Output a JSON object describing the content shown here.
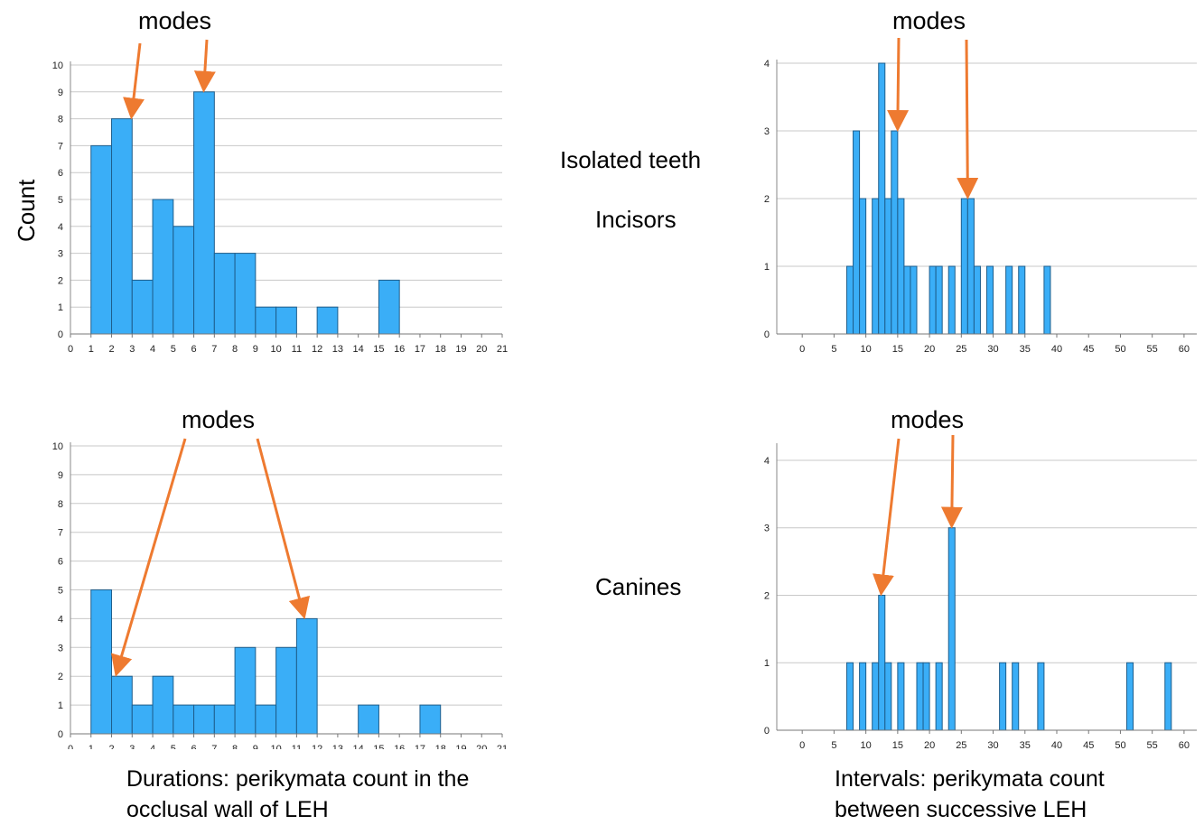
{
  "figure": {
    "y_label": "Count",
    "row_labels": {
      "isolated": "Isolated teeth",
      "incisors": "Incisors",
      "canines": "Canines"
    },
    "x_captions": {
      "durations": "Durations: perikymata count in the occlusal wall of LEH",
      "intervals": "Intervals: perikymata count between successive LEH"
    },
    "annotation": "modes",
    "colors": {
      "bar": "#3AAEF7",
      "bar_stroke": "#1E5E8C",
      "arrow": "#EE7A30",
      "grid": "#C8C8C8"
    }
  },
  "chart_data": [
    {
      "type": "bar",
      "id": "incisors-durations",
      "x_edges_start": 1,
      "bin_width": 1,
      "values": [
        7,
        8,
        2,
        5,
        4,
        9,
        3,
        3,
        1,
        1,
        0,
        1,
        0,
        0,
        2
      ],
      "xlim": [
        0,
        21
      ],
      "ylim": [
        0,
        10
      ],
      "xticks": [
        0,
        1,
        2,
        3,
        4,
        5,
        6,
        7,
        8,
        9,
        10,
        11,
        12,
        13,
        14,
        15,
        16,
        17,
        18,
        19,
        20,
        21
      ],
      "yticks": [
        0,
        1,
        2,
        3,
        4,
        5,
        6,
        7,
        8,
        9,
        10
      ],
      "mode_markers": [
        3,
        6.5
      ]
    },
    {
      "type": "bar",
      "id": "incisors-intervals",
      "bars": [
        {
          "x": 7,
          "y": 1
        },
        {
          "x": 8,
          "y": 3
        },
        {
          "x": 9,
          "y": 2
        },
        {
          "x": 11,
          "y": 2
        },
        {
          "x": 12,
          "y": 4
        },
        {
          "x": 13,
          "y": 2
        },
        {
          "x": 14,
          "y": 3
        },
        {
          "x": 15,
          "y": 2
        },
        {
          "x": 16,
          "y": 1
        },
        {
          "x": 17,
          "y": 1
        },
        {
          "x": 20,
          "y": 1
        },
        {
          "x": 21,
          "y": 1
        },
        {
          "x": 23,
          "y": 1
        },
        {
          "x": 25,
          "y": 2
        },
        {
          "x": 26,
          "y": 2
        },
        {
          "x": 27,
          "y": 1
        },
        {
          "x": 29,
          "y": 1
        },
        {
          "x": 32,
          "y": 1
        },
        {
          "x": 34,
          "y": 1
        },
        {
          "x": 38,
          "y": 1
        }
      ],
      "bin_width": 1,
      "xlim": [
        -4,
        62
      ],
      "ylim": [
        0,
        4
      ],
      "xticks": [
        0,
        5,
        10,
        15,
        20,
        25,
        30,
        35,
        40,
        45,
        50,
        55,
        60
      ],
      "yticks": [
        0,
        1,
        2,
        3,
        4
      ],
      "mode_markers": [
        15,
        26
      ]
    },
    {
      "type": "bar",
      "id": "canines-durations",
      "x_edges_start": 1,
      "bin_width": 1,
      "values": [
        5,
        2,
        1,
        2,
        1,
        1,
        1,
        3,
        1,
        3,
        4,
        0,
        0,
        1,
        0,
        0,
        1
      ],
      "xlim": [
        0,
        21
      ],
      "ylim": [
        0,
        10
      ],
      "xticks": [
        0,
        1,
        2,
        3,
        4,
        5,
        6,
        7,
        8,
        9,
        10,
        11,
        12,
        13,
        14,
        15,
        16,
        17,
        18,
        19,
        20,
        21
      ],
      "yticks": [
        0,
        1,
        2,
        3,
        4,
        5,
        6,
        7,
        8,
        9,
        10
      ],
      "mode_markers": [
        2.3,
        11.3
      ]
    },
    {
      "type": "bar",
      "id": "canines-intervals",
      "bars": [
        {
          "x": 7,
          "y": 1
        },
        {
          "x": 9,
          "y": 1
        },
        {
          "x": 11,
          "y": 1
        },
        {
          "x": 12,
          "y": 2
        },
        {
          "x": 13,
          "y": 1
        },
        {
          "x": 15,
          "y": 1
        },
        {
          "x": 18,
          "y": 1
        },
        {
          "x": 19,
          "y": 1
        },
        {
          "x": 21,
          "y": 1
        },
        {
          "x": 23,
          "y": 3
        },
        {
          "x": 31,
          "y": 1
        },
        {
          "x": 33,
          "y": 1
        },
        {
          "x": 37,
          "y": 1
        },
        {
          "x": 51,
          "y": 1
        },
        {
          "x": 57,
          "y": 1
        }
      ],
      "bin_width": 1,
      "xlim": [
        -4,
        62
      ],
      "ylim": [
        0,
        4.2
      ],
      "xticks": [
        0,
        5,
        10,
        15,
        20,
        25,
        30,
        35,
        40,
        45,
        50,
        55,
        60
      ],
      "yticks": [
        0,
        1,
        2,
        3,
        4
      ],
      "mode_markers": [
        12.5,
        23.5
      ]
    }
  ]
}
